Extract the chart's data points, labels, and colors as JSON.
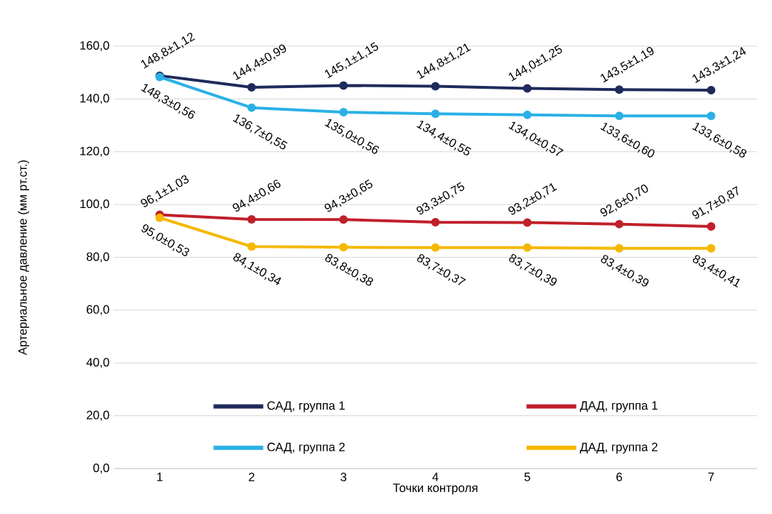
{
  "chart_data": {
    "type": "line",
    "xlabel": "Точки контроля",
    "ylabel": "Артериальное давление (мм рт.ст.)",
    "categories": [
      "1",
      "2",
      "3",
      "4",
      "5",
      "6",
      "7"
    ],
    "series": [
      {
        "name": "САД, группа 1",
        "color": "#1f2a5c",
        "values": [
          148.8,
          144.4,
          145.1,
          144.8,
          144.0,
          143.5,
          143.3
        ],
        "value_labels": [
          "148,8±1,12",
          "144,4±0,99",
          "145,1±1,15",
          "144,8±1,21",
          "144,0±1,25",
          "143,5±1,19",
          "143,3±1,24"
        ]
      },
      {
        "name": "САД, группа 2",
        "color": "#2bb0e6",
        "values": [
          148.3,
          136.7,
          135.0,
          134.4,
          134.0,
          133.6,
          133.6
        ],
        "value_labels": [
          "148,3±0,56",
          "136,7±0,55",
          "135,0±0,56",
          "134,4±0,55",
          "134,0±0,57",
          "133,6±0,60",
          "133,6±0,58"
        ]
      },
      {
        "name": "ДАД, группа 1",
        "color": "#c0202a",
        "values": [
          96.1,
          94.4,
          94.3,
          93.3,
          93.2,
          92.6,
          91.7
        ],
        "value_labels": [
          "96,1±1,03",
          "94,4±0,66",
          "94,3±0,65",
          "93,3±0,75",
          "93,2±0,71",
          "92,6±0,70",
          "91,7±0,87"
        ]
      },
      {
        "name": "ДАД, группа 2",
        "color": "#f5b800",
        "values": [
          95.0,
          84.1,
          83.8,
          83.7,
          83.7,
          83.4,
          83.4
        ],
        "value_labels": [
          "95,0±0,53",
          "84,1±0,34",
          "83,8±0,38",
          "83,7±0,37",
          "83,7±0,39",
          "83,4±0,39",
          "83,4±0,41"
        ]
      }
    ],
    "ylim": [
      0,
      160
    ],
    "yticks": [
      {
        "value": 0,
        "label": "0,0"
      },
      {
        "value": 20,
        "label": "20,0"
      },
      {
        "value": 40,
        "label": "40,0"
      },
      {
        "value": 60,
        "label": "60,0"
      },
      {
        "value": 80,
        "label": "80,0"
      },
      {
        "value": 100,
        "label": "100,0"
      },
      {
        "value": 120,
        "label": "120,0"
      },
      {
        "value": 140,
        "label": "140,0"
      },
      {
        "value": 160,
        "label": "160,0"
      }
    ],
    "grid": "y",
    "legend": "bottom",
    "marker": "circle",
    "line_style": "solid"
  }
}
